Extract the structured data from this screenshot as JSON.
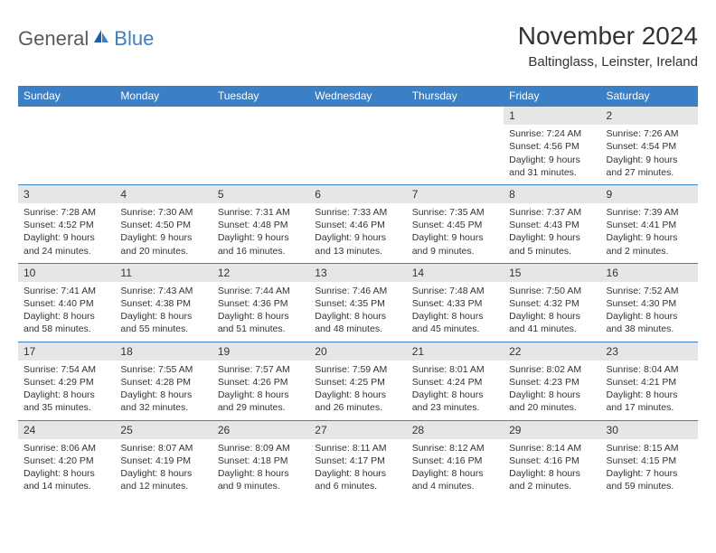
{
  "logo": {
    "word1": "General",
    "word2": "Blue"
  },
  "title": "November 2024",
  "location": "Baltinglass, Leinster, Ireland",
  "colors": {
    "header_bg": "#3b7fc4",
    "header_text": "#ffffff",
    "daynum_bg": "#e6e6e6",
    "border": "#3b7fc4",
    "text": "#333333",
    "logo_gray": "#5a5a5a",
    "logo_blue": "#3b7fc4",
    "page_bg": "#ffffff"
  },
  "day_names": [
    "Sunday",
    "Monday",
    "Tuesday",
    "Wednesday",
    "Thursday",
    "Friday",
    "Saturday"
  ],
  "weeks": [
    [
      {
        "n": "",
        "sr": "",
        "ss": "",
        "dl": ""
      },
      {
        "n": "",
        "sr": "",
        "ss": "",
        "dl": ""
      },
      {
        "n": "",
        "sr": "",
        "ss": "",
        "dl": ""
      },
      {
        "n": "",
        "sr": "",
        "ss": "",
        "dl": ""
      },
      {
        "n": "",
        "sr": "",
        "ss": "",
        "dl": ""
      },
      {
        "n": "1",
        "sr": "Sunrise: 7:24 AM",
        "ss": "Sunset: 4:56 PM",
        "dl": "Daylight: 9 hours and 31 minutes."
      },
      {
        "n": "2",
        "sr": "Sunrise: 7:26 AM",
        "ss": "Sunset: 4:54 PM",
        "dl": "Daylight: 9 hours and 27 minutes."
      }
    ],
    [
      {
        "n": "3",
        "sr": "Sunrise: 7:28 AM",
        "ss": "Sunset: 4:52 PM",
        "dl": "Daylight: 9 hours and 24 minutes."
      },
      {
        "n": "4",
        "sr": "Sunrise: 7:30 AM",
        "ss": "Sunset: 4:50 PM",
        "dl": "Daylight: 9 hours and 20 minutes."
      },
      {
        "n": "5",
        "sr": "Sunrise: 7:31 AM",
        "ss": "Sunset: 4:48 PM",
        "dl": "Daylight: 9 hours and 16 minutes."
      },
      {
        "n": "6",
        "sr": "Sunrise: 7:33 AM",
        "ss": "Sunset: 4:46 PM",
        "dl": "Daylight: 9 hours and 13 minutes."
      },
      {
        "n": "7",
        "sr": "Sunrise: 7:35 AM",
        "ss": "Sunset: 4:45 PM",
        "dl": "Daylight: 9 hours and 9 minutes."
      },
      {
        "n": "8",
        "sr": "Sunrise: 7:37 AM",
        "ss": "Sunset: 4:43 PM",
        "dl": "Daylight: 9 hours and 5 minutes."
      },
      {
        "n": "9",
        "sr": "Sunrise: 7:39 AM",
        "ss": "Sunset: 4:41 PM",
        "dl": "Daylight: 9 hours and 2 minutes."
      }
    ],
    [
      {
        "n": "10",
        "sr": "Sunrise: 7:41 AM",
        "ss": "Sunset: 4:40 PM",
        "dl": "Daylight: 8 hours and 58 minutes."
      },
      {
        "n": "11",
        "sr": "Sunrise: 7:43 AM",
        "ss": "Sunset: 4:38 PM",
        "dl": "Daylight: 8 hours and 55 minutes."
      },
      {
        "n": "12",
        "sr": "Sunrise: 7:44 AM",
        "ss": "Sunset: 4:36 PM",
        "dl": "Daylight: 8 hours and 51 minutes."
      },
      {
        "n": "13",
        "sr": "Sunrise: 7:46 AM",
        "ss": "Sunset: 4:35 PM",
        "dl": "Daylight: 8 hours and 48 minutes."
      },
      {
        "n": "14",
        "sr": "Sunrise: 7:48 AM",
        "ss": "Sunset: 4:33 PM",
        "dl": "Daylight: 8 hours and 45 minutes."
      },
      {
        "n": "15",
        "sr": "Sunrise: 7:50 AM",
        "ss": "Sunset: 4:32 PM",
        "dl": "Daylight: 8 hours and 41 minutes."
      },
      {
        "n": "16",
        "sr": "Sunrise: 7:52 AM",
        "ss": "Sunset: 4:30 PM",
        "dl": "Daylight: 8 hours and 38 minutes."
      }
    ],
    [
      {
        "n": "17",
        "sr": "Sunrise: 7:54 AM",
        "ss": "Sunset: 4:29 PM",
        "dl": "Daylight: 8 hours and 35 minutes."
      },
      {
        "n": "18",
        "sr": "Sunrise: 7:55 AM",
        "ss": "Sunset: 4:28 PM",
        "dl": "Daylight: 8 hours and 32 minutes."
      },
      {
        "n": "19",
        "sr": "Sunrise: 7:57 AM",
        "ss": "Sunset: 4:26 PM",
        "dl": "Daylight: 8 hours and 29 minutes."
      },
      {
        "n": "20",
        "sr": "Sunrise: 7:59 AM",
        "ss": "Sunset: 4:25 PM",
        "dl": "Daylight: 8 hours and 26 minutes."
      },
      {
        "n": "21",
        "sr": "Sunrise: 8:01 AM",
        "ss": "Sunset: 4:24 PM",
        "dl": "Daylight: 8 hours and 23 minutes."
      },
      {
        "n": "22",
        "sr": "Sunrise: 8:02 AM",
        "ss": "Sunset: 4:23 PM",
        "dl": "Daylight: 8 hours and 20 minutes."
      },
      {
        "n": "23",
        "sr": "Sunrise: 8:04 AM",
        "ss": "Sunset: 4:21 PM",
        "dl": "Daylight: 8 hours and 17 minutes."
      }
    ],
    [
      {
        "n": "24",
        "sr": "Sunrise: 8:06 AM",
        "ss": "Sunset: 4:20 PM",
        "dl": "Daylight: 8 hours and 14 minutes."
      },
      {
        "n": "25",
        "sr": "Sunrise: 8:07 AM",
        "ss": "Sunset: 4:19 PM",
        "dl": "Daylight: 8 hours and 12 minutes."
      },
      {
        "n": "26",
        "sr": "Sunrise: 8:09 AM",
        "ss": "Sunset: 4:18 PM",
        "dl": "Daylight: 8 hours and 9 minutes."
      },
      {
        "n": "27",
        "sr": "Sunrise: 8:11 AM",
        "ss": "Sunset: 4:17 PM",
        "dl": "Daylight: 8 hours and 6 minutes."
      },
      {
        "n": "28",
        "sr": "Sunrise: 8:12 AM",
        "ss": "Sunset: 4:16 PM",
        "dl": "Daylight: 8 hours and 4 minutes."
      },
      {
        "n": "29",
        "sr": "Sunrise: 8:14 AM",
        "ss": "Sunset: 4:16 PM",
        "dl": "Daylight: 8 hours and 2 minutes."
      },
      {
        "n": "30",
        "sr": "Sunrise: 8:15 AM",
        "ss": "Sunset: 4:15 PM",
        "dl": "Daylight: 7 hours and 59 minutes."
      }
    ]
  ]
}
